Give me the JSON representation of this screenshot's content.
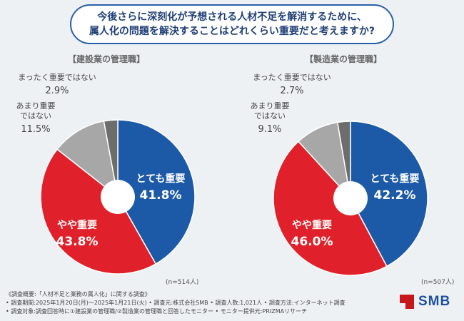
{
  "title": {
    "line1": "今後さらに深刻化が予想される人材不足を解消するために、",
    "line2": "属人化の問題を解決することはどれくらい重要だと考えますか?"
  },
  "colors": {
    "very": "#1c5aa8",
    "somewhat": "#e0212b",
    "not_very": "#a7a7a7",
    "not_at_all": "#6d6d6d",
    "title_border": "#2a5fa8"
  },
  "chart_data": [
    {
      "type": "pie",
      "title": "【建設業の管理職】",
      "n_label": "(n=514人)",
      "slices": [
        {
          "label": "とても重要",
          "value": 41.8,
          "display": "41.8%"
        },
        {
          "label": "やや重要",
          "value": 43.8,
          "display": "43.8%"
        },
        {
          "label": "あまり重要ではない",
          "value": 11.5,
          "display": "11.5%"
        },
        {
          "label": "まったく重要ではない",
          "value": 2.9,
          "display": "2.9%"
        }
      ]
    },
    {
      "type": "pie",
      "title": "【製造業の管理職】",
      "n_label": "(n=507人)",
      "slices": [
        {
          "label": "とても重要",
          "value": 42.2,
          "display": "42.2%"
        },
        {
          "label": "やや重要",
          "value": 46.0,
          "display": "46.0%"
        },
        {
          "label": "あまり重要ではない",
          "value": 9.1,
          "display": "9.1%"
        },
        {
          "label": "まったく重要ではない",
          "value": 2.7,
          "display": "2.7%"
        }
      ]
    }
  ],
  "notes": {
    "line1": "《調査概要:「人材不足と業務の属人化」に関する調査》",
    "line2": "• 調査期間:2025年1月20日(月)〜2025年1月21日(火) • 調査元:株式会社SMB • 調査人数:1,021人 • 調査方法:インターネット調査",
    "line3": "• 調査対象:調査回答時に①建設業の管理職/②製造業の管理職と回答したモニター • モニター提供元:PRIZMAリサーチ"
  },
  "logo": {
    "text": "SMB"
  }
}
